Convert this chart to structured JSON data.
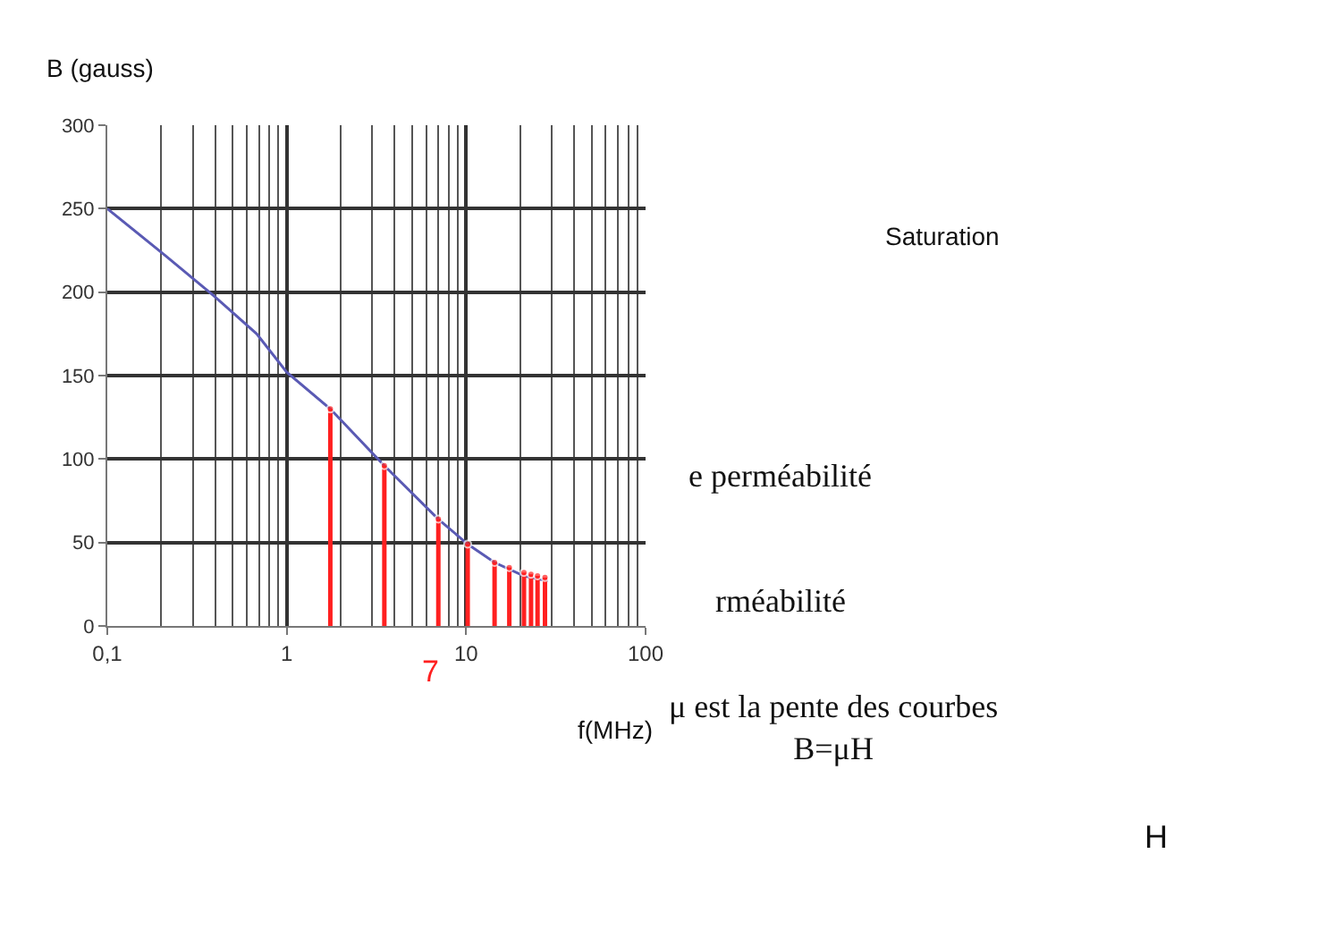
{
  "chart_data": {
    "type": "line",
    "ylabel": "B (gauss)",
    "xlabel": "f(MHz)",
    "log": "x",
    "xlim": [
      0.1,
      100
    ],
    "xticks": [
      {
        "value": 0.1,
        "label": "0,1"
      },
      1,
      10,
      100
    ],
    "ylim": [
      0,
      300
    ],
    "yticks": [
      0,
      50,
      100,
      150,
      200,
      250,
      300
    ],
    "grid": true,
    "series": [
      {
        "color": "#5a5ab4",
        "x": [
          0.1,
          0.21,
          0.39,
          0.68,
          1,
          1.75,
          3.5,
          7,
          10.2,
          14.4,
          21,
          28.5
        ],
        "values": [
          250,
          222,
          198,
          175,
          152,
          130,
          96,
          64,
          49,
          38,
          30,
          27
        ]
      },
      {
        "type": "lollipop",
        "color": "#ff2020",
        "x": [
          1.75,
          3.5,
          7,
          10.2,
          14.4,
          17.4,
          21,
          23,
          25,
          27.5
        ],
        "values": [
          130,
          96,
          64,
          49,
          38,
          35,
          32,
          31,
          30,
          29
        ]
      }
    ],
    "annotations": [
      "7",
      "Saturation",
      "e perméabilité",
      "rméabilité",
      "μ est la pente des courbes\nB=μH",
      "H"
    ]
  }
}
